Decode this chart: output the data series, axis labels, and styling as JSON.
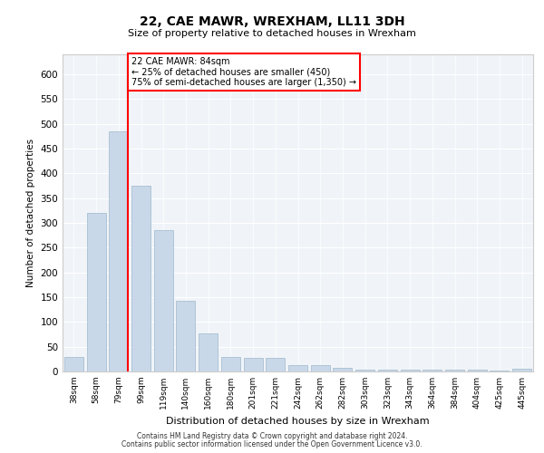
{
  "title": "22, CAE MAWR, WREXHAM, LL11 3DH",
  "subtitle": "Size of property relative to detached houses in Wrexham",
  "xlabel": "Distribution of detached houses by size in Wrexham",
  "ylabel": "Number of detached properties",
  "bar_color": "#c8d8e8",
  "bar_edgecolor": "#a0b8cc",
  "background_color": "#f0f4f8",
  "categories": [
    "38sqm",
    "58sqm",
    "79sqm",
    "99sqm",
    "119sqm",
    "140sqm",
    "160sqm",
    "180sqm",
    "201sqm",
    "221sqm",
    "242sqm",
    "262sqm",
    "282sqm",
    "303sqm",
    "323sqm",
    "343sqm",
    "364sqm",
    "384sqm",
    "404sqm",
    "425sqm",
    "445sqm"
  ],
  "values": [
    30,
    320,
    485,
    375,
    285,
    143,
    77,
    30,
    27,
    27,
    13,
    13,
    7,
    4,
    3,
    3,
    3,
    3,
    3,
    2,
    5
  ],
  "ylim": [
    0,
    640
  ],
  "yticks": [
    0,
    50,
    100,
    150,
    200,
    250,
    300,
    350,
    400,
    450,
    500,
    550,
    600
  ],
  "red_line_index": 2.425,
  "annotation_text": "22 CAE MAWR: 84sqm\n← 25% of detached houses are smaller (450)\n75% of semi-detached houses are larger (1,350) →",
  "footer_line1": "Contains HM Land Registry data © Crown copyright and database right 2024.",
  "footer_line2": "Contains public sector information licensed under the Open Government Licence v3.0."
}
